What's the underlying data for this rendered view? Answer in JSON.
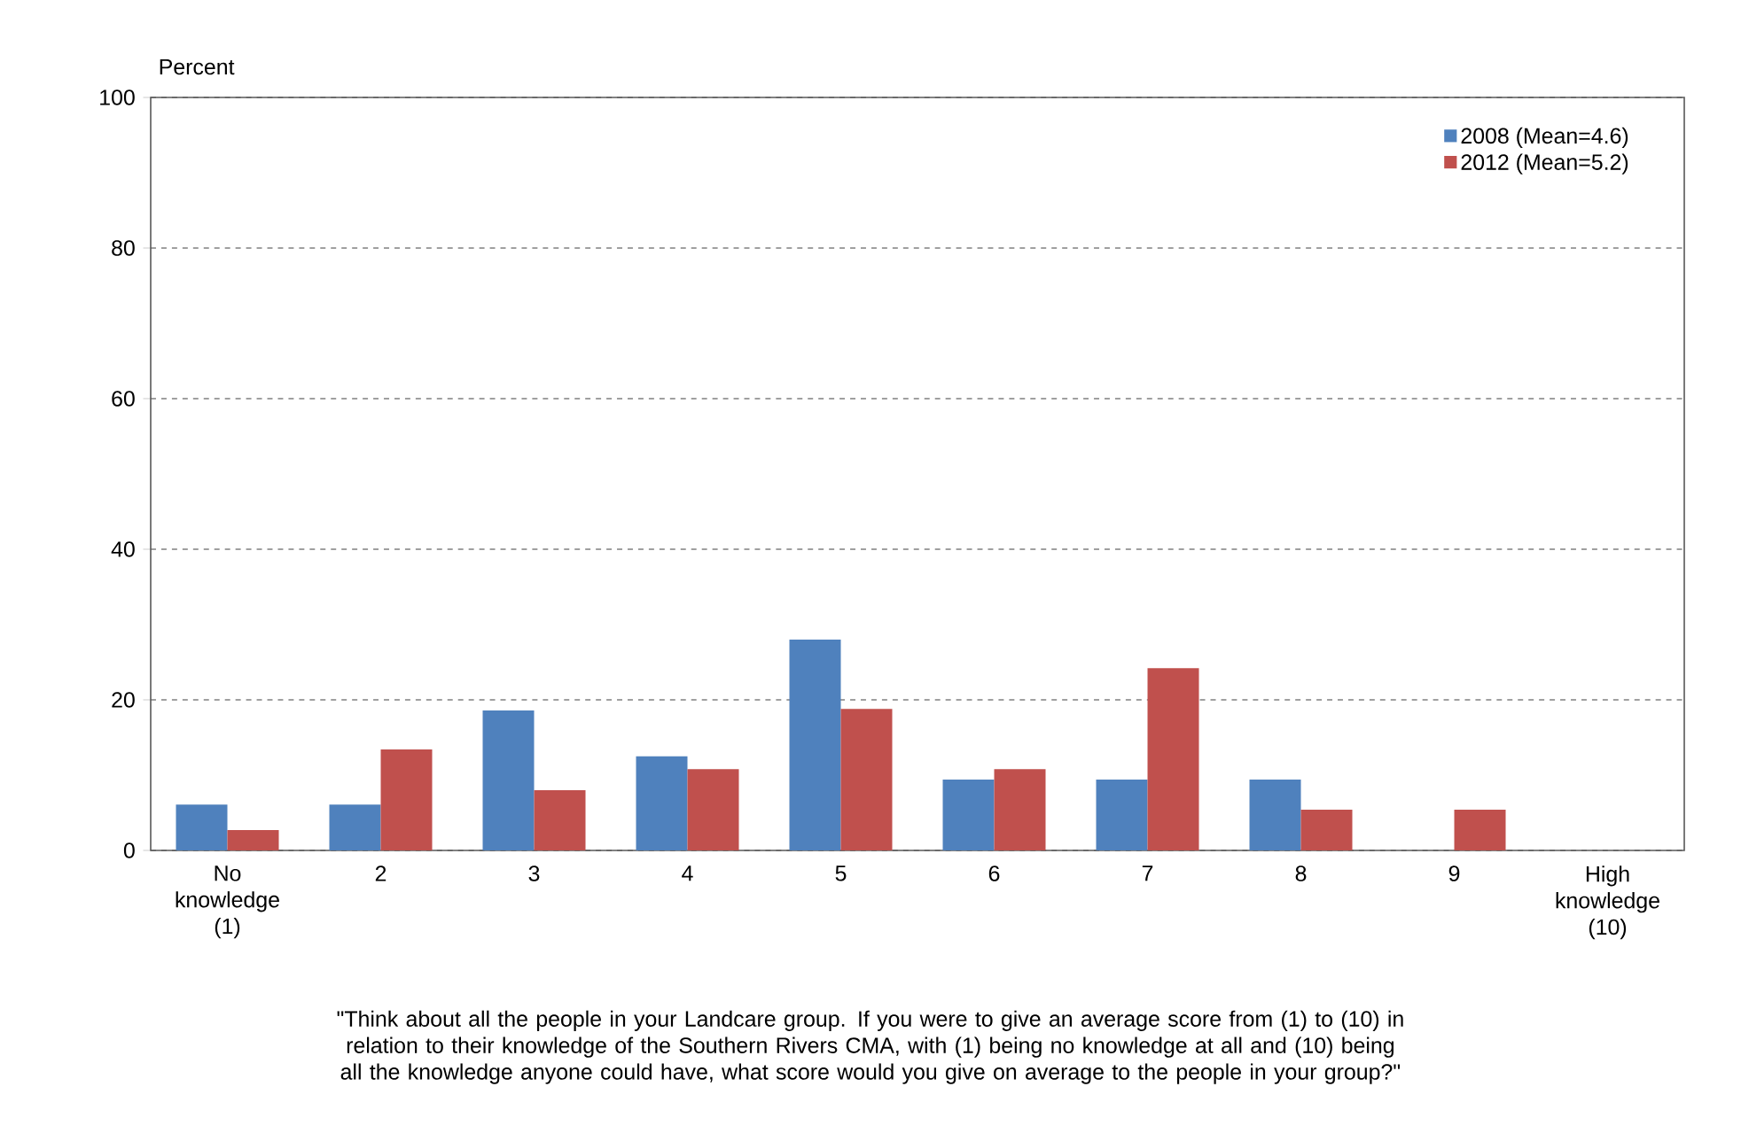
{
  "chart_data": {
    "type": "bar",
    "ylabel": "Percent",
    "categories": [
      "No knowledge (1)",
      "2",
      "3",
      "4",
      "5",
      "6",
      "7",
      "8",
      "9",
      "High knowledge (10)"
    ],
    "series": [
      {
        "name": "2008 (Mean=4.6)",
        "color": "#4f81bd",
        "values": [
          6.1,
          6.1,
          18.6,
          12.5,
          28.0,
          9.4,
          9.4,
          9.4,
          0,
          0
        ]
      },
      {
        "name": "2012 (Mean=5.2)",
        "color": "#c0504d",
        "values": [
          2.7,
          13.4,
          8.0,
          10.8,
          18.8,
          10.8,
          24.2,
          5.4,
          5.4,
          0
        ]
      }
    ],
    "ylim": [
      0,
      100
    ],
    "yticks": [
      0,
      20,
      40,
      60,
      80,
      100
    ],
    "grid": "y",
    "legend": "top right",
    "annotations": [
      "\"Think about all the people in your Landcare group. If you were to give an average score from (1) to (10) in relation to their knowledge of the Southern Rivers CMA, with (1) being no knowledge at all and (10) being all the knowledge anyone could have, what score would you give on average to the people in your group?\""
    ]
  }
}
